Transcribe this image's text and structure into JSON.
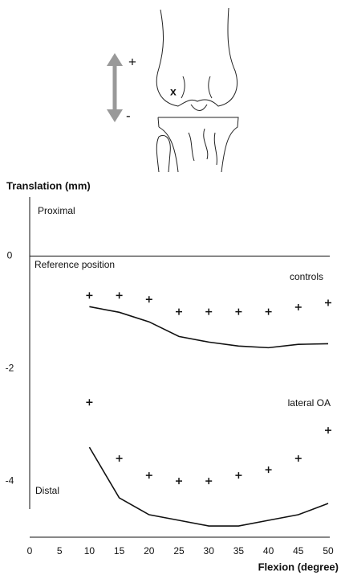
{
  "illustration": {
    "plus": "+",
    "minus": "-",
    "marker": "x"
  },
  "chart_data": {
    "type": "line",
    "y_label": "Translation (mm)",
    "x_label": "Flexion (degree)",
    "annotations": {
      "top": "Proximal",
      "reference": "Reference position",
      "bottom": "Distal"
    },
    "x": [
      10,
      15,
      20,
      25,
      30,
      35,
      40,
      45,
      50
    ],
    "xlim": [
      0,
      50
    ],
    "xticks": [
      0,
      5,
      10,
      15,
      20,
      25,
      30,
      35,
      40,
      45,
      50
    ],
    "ylim": [
      -5,
      1.05
    ],
    "yticks": [
      0,
      -2,
      -4
    ],
    "series": [
      {
        "name": "controls",
        "color": "#111111",
        "values": [
          -0.7,
          -0.7,
          -0.77,
          -0.99,
          -0.99,
          -0.99,
          -0.99,
          -0.91,
          -0.83
        ],
        "fit_values": [
          -0.9,
          -1.0,
          -1.17,
          -1.43,
          -1.53,
          -1.6,
          -1.63,
          -1.57,
          -1.56
        ]
      },
      {
        "name": "lateral OA",
        "color": "#111111",
        "values": [
          -2.6,
          -3.6,
          -3.9,
          -4.0,
          -4.0,
          -3.9,
          -3.8,
          -3.6,
          -3.1
        ],
        "fit_values": [
          -3.4,
          -4.3,
          -4.6,
          -4.7,
          -4.8,
          -4.8,
          -4.7,
          -4.6,
          -4.4
        ]
      }
    ]
  }
}
